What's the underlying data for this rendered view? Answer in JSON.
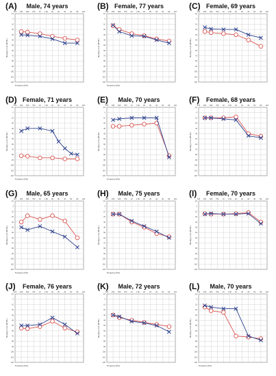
{
  "colors": {
    "right_ear": "#d9534f",
    "left_ear": "#2b3f8c",
    "grid": "#c8c8c8",
    "frame": "#555555"
  },
  "chart_data": [
    {
      "letter": "(A)",
      "title": "Male, 74 years",
      "type": "line",
      "xlabel": "Frequency (Hz)",
      "ylabel": "Hearing Level (dB HL)",
      "ylim": [
        -10,
        120
      ],
      "x_ticks": [
        "125",
        "250",
        "500",
        "750",
        "1K",
        "1.5K",
        "2K",
        "3K",
        "4K",
        "6K",
        "8K",
        "12K"
      ],
      "series": [
        {
          "marker": "circle",
          "values": [
            {
              "x": "250",
              "y": 24
            },
            {
              "x": "500",
              "y": 25
            },
            {
              "x": "1K",
              "y": 28
            },
            {
              "x": "2K",
              "y": 33
            },
            {
              "x": "4K",
              "y": 37
            },
            {
              "x": "8K",
              "y": 40
            }
          ]
        },
        {
          "marker": "cross",
          "values": [
            {
              "x": "250",
              "y": 30
            },
            {
              "x": "500",
              "y": 31
            },
            {
              "x": "1K",
              "y": 33
            },
            {
              "x": "2K",
              "y": 38
            },
            {
              "x": "4K",
              "y": 46
            },
            {
              "x": "8K",
              "y": 46
            }
          ]
        }
      ]
    },
    {
      "letter": "(B)",
      "title": "Female, 77 years",
      "type": "line",
      "xlabel": "Frequency (Hz)",
      "ylabel": "Hearing Level (dB HL)",
      "ylim": [
        -10,
        120
      ],
      "x_ticks": [
        "125",
        "250",
        "500",
        "750",
        "1K",
        "1.5K",
        "2K",
        "3K",
        "4K",
        "6K",
        "8K",
        "12K"
      ],
      "series": [
        {
          "marker": "circle",
          "values": [
            {
              "x": "250",
              "y": 13
            },
            {
              "x": "500",
              "y": 20
            },
            {
              "x": "1K",
              "y": 28
            },
            {
              "x": "2K",
              "y": 32
            },
            {
              "x": "4K",
              "y": 38
            },
            {
              "x": "8K",
              "y": 42
            }
          ]
        },
        {
          "marker": "cross",
          "values": [
            {
              "x": "250",
              "y": 12
            },
            {
              "x": "500",
              "y": 24
            },
            {
              "x": "1K",
              "y": 32
            },
            {
              "x": "2K",
              "y": 33
            },
            {
              "x": "4K",
              "y": 40
            },
            {
              "x": "8K",
              "y": 46
            }
          ]
        }
      ]
    },
    {
      "letter": "(C)",
      "title": "Female, 69 years",
      "type": "line",
      "xlabel": "",
      "ylabel": "Hearing Level (dB HL)",
      "ylim": [
        -10,
        120
      ],
      "x_ticks": [
        "125",
        "250",
        "500",
        "750",
        "1K",
        "1.5K",
        "2K",
        "3K",
        "4K",
        "6K",
        "8K",
        "12K"
      ],
      "series": [
        {
          "marker": "circle",
          "values": [
            {
              "x": "250",
              "y": 24
            },
            {
              "x": "500",
              "y": 26
            },
            {
              "x": "1K",
              "y": 28
            },
            {
              "x": "2K",
              "y": 30
            },
            {
              "x": "4K",
              "y": 40
            },
            {
              "x": "8K",
              "y": 52
            }
          ]
        },
        {
          "marker": "cross",
          "values": [
            {
              "x": "250",
              "y": 16
            },
            {
              "x": "500",
              "y": 19
            },
            {
              "x": "1K",
              "y": 20
            },
            {
              "x": "2K",
              "y": 20
            },
            {
              "x": "4K",
              "y": 30
            },
            {
              "x": "8K",
              "y": 36
            }
          ]
        }
      ]
    },
    {
      "letter": "(D)",
      "title": "Female, 71 years",
      "type": "line",
      "xlabel": "Frequency (Hz)",
      "ylabel": "Hearing Level (dB HL)",
      "ylim": [
        -10,
        120
      ],
      "x_ticks": [
        "125",
        "250",
        "500",
        "750",
        "1K",
        "1.5K",
        "2K",
        "3K",
        "4K",
        "6K",
        "8K",
        "12K"
      ],
      "series": [
        {
          "marker": "circle",
          "values": [
            {
              "x": "250",
              "y": 82
            },
            {
              "x": "500",
              "y": 83
            },
            {
              "x": "1K",
              "y": 86
            },
            {
              "x": "2K",
              "y": 86
            },
            {
              "x": "4K",
              "y": 88
            },
            {
              "x": "8K",
              "y": 88
            }
          ]
        },
        {
          "marker": "cross",
          "values": [
            {
              "x": "250",
              "y": 35
            },
            {
              "x": "500",
              "y": 30
            },
            {
              "x": "1K",
              "y": 30
            },
            {
              "x": "2K",
              "y": 35
            },
            {
              "x": "3K",
              "y": 55
            },
            {
              "x": "4K",
              "y": 68
            },
            {
              "x": "6K",
              "y": 78
            },
            {
              "x": "8K",
              "y": 80
            }
          ]
        }
      ]
    },
    {
      "letter": "(E)",
      "title": "Male, 70 years",
      "type": "line",
      "xlabel": "Frequency (Hz)",
      "ylabel": "Hearing Level (dB HL)",
      "ylim": [
        -10,
        120
      ],
      "x_ticks": [
        "125",
        "250",
        "500",
        "750",
        "1K",
        "1.5K",
        "2K",
        "3K",
        "4K",
        "6K",
        "8K",
        "12K"
      ],
      "series": [
        {
          "marker": "circle",
          "values": [
            {
              "x": "250",
              "y": 26
            },
            {
              "x": "500",
              "y": 26
            },
            {
              "x": "1K",
              "y": 24
            },
            {
              "x": "2K",
              "y": 22
            },
            {
              "x": "4K",
              "y": 20
            },
            {
              "x": "8K",
              "y": 82
            }
          ]
        },
        {
          "marker": "cross",
          "values": [
            {
              "x": "250",
              "y": 14
            },
            {
              "x": "500",
              "y": 12
            },
            {
              "x": "1K",
              "y": 10
            },
            {
              "x": "2K",
              "y": 10
            },
            {
              "x": "4K",
              "y": 10
            },
            {
              "x": "8K",
              "y": 85
            }
          ]
        }
      ]
    },
    {
      "letter": "(F)",
      "title": "Female, 68 years",
      "type": "line",
      "xlabel": "",
      "ylabel": "Hearing Level (dB HL)",
      "ylim": [
        -10,
        120
      ],
      "x_ticks": [
        "125",
        "250",
        "500",
        "750",
        "1K",
        "1.5K",
        "2K",
        "3K",
        "4K",
        "6K",
        "8K",
        "12K"
      ],
      "series": [
        {
          "marker": "circle",
          "values": [
            {
              "x": "250",
              "y": 10
            },
            {
              "x": "500",
              "y": 10
            },
            {
              "x": "1K",
              "y": 10
            },
            {
              "x": "2K",
              "y": 8
            },
            {
              "x": "4K",
              "y": 40
            },
            {
              "x": "8K",
              "y": 45
            }
          ]
        },
        {
          "marker": "cross",
          "values": [
            {
              "x": "250",
              "y": 10
            },
            {
              "x": "500",
              "y": 10
            },
            {
              "x": "1K",
              "y": 12
            },
            {
              "x": "2K",
              "y": 14
            },
            {
              "x": "4K",
              "y": 44
            },
            {
              "x": "8K",
              "y": 48
            }
          ]
        }
      ]
    },
    {
      "letter": "(G)",
      "title": "Male, 65 years",
      "type": "line",
      "xlabel": "Frequency (Hz)",
      "ylabel": "Hearing Level (dB HL)",
      "ylim": [
        -10,
        120
      ],
      "x_ticks": [
        "125",
        "250",
        "500",
        "750",
        "1K",
        "1.5K",
        "2K",
        "3K",
        "4K",
        "6K",
        "8K",
        "12K"
      ],
      "series": [
        {
          "marker": "circle",
          "values": [
            {
              "x": "250",
              "y": 30
            },
            {
              "x": "500",
              "y": 18
            },
            {
              "x": "1K",
              "y": 25
            },
            {
              "x": "2K",
              "y": 18
            },
            {
              "x": "4K",
              "y": 28
            },
            {
              "x": "8K",
              "y": 60
            }
          ]
        },
        {
          "marker": "cross",
          "values": [
            {
              "x": "250",
              "y": 40
            },
            {
              "x": "500",
              "y": 45
            },
            {
              "x": "1K",
              "y": 38
            },
            {
              "x": "2K",
              "y": 48
            },
            {
              "x": "4K",
              "y": 58
            },
            {
              "x": "8K",
              "y": 78
            }
          ]
        }
      ]
    },
    {
      "letter": "(H)",
      "title": "Male, 75 years",
      "type": "line",
      "xlabel": "Frequency (Hz)",
      "ylabel": "Hearing Level (dB HL)",
      "ylim": [
        -10,
        120
      ],
      "x_ticks": [
        "125",
        "250",
        "500",
        "750",
        "1K",
        "1.5K",
        "2K",
        "3K",
        "4K",
        "6K",
        "8K",
        "12K"
      ],
      "series": [
        {
          "marker": "circle",
          "values": [
            {
              "x": "250",
              "y": 15
            },
            {
              "x": "500",
              "y": 15
            },
            {
              "x": "1K",
              "y": 30
            },
            {
              "x": "2K",
              "y": 40
            },
            {
              "x": "4K",
              "y": 52
            },
            {
              "x": "8K",
              "y": 58
            }
          ]
        },
        {
          "marker": "cross",
          "values": [
            {
              "x": "250",
              "y": 15
            },
            {
              "x": "500",
              "y": 15
            },
            {
              "x": "1K",
              "y": 28
            },
            {
              "x": "2K",
              "y": 38
            },
            {
              "x": "4K",
              "y": 48
            },
            {
              "x": "8K",
              "y": 60
            }
          ]
        }
      ]
    },
    {
      "letter": "(I)",
      "title": "Female, 70 years",
      "type": "line",
      "xlabel": "",
      "ylabel": "Hearing Level (dB HL)",
      "ylim": [
        -10,
        120
      ],
      "x_ticks": [
        "125",
        "250",
        "500",
        "750",
        "1K",
        "1.5K",
        "2K",
        "3K",
        "4K",
        "6K",
        "8K",
        "12K"
      ],
      "series": [
        {
          "marker": "circle",
          "values": [
            {
              "x": "250",
              "y": 14
            },
            {
              "x": "500",
              "y": 15
            },
            {
              "x": "1K",
              "y": 15
            },
            {
              "x": "2K",
              "y": 14
            },
            {
              "x": "4K",
              "y": 12
            },
            {
              "x": "8K",
              "y": 30
            }
          ]
        },
        {
          "marker": "cross",
          "values": [
            {
              "x": "250",
              "y": 15
            },
            {
              "x": "500",
              "y": 14
            },
            {
              "x": "1K",
              "y": 15
            },
            {
              "x": "2K",
              "y": 15
            },
            {
              "x": "4K",
              "y": 14
            },
            {
              "x": "8K",
              "y": 33
            }
          ]
        }
      ]
    },
    {
      "letter": "(J)",
      "title": "Female, 76 years",
      "type": "line",
      "xlabel": "Frequency (Hz)",
      "ylabel": "Hearing Level (dB HL)",
      "ylim": [
        -10,
        120
      ],
      "x_ticks": [
        "125",
        "250",
        "500",
        "750",
        "1K",
        "1.5K",
        "2K",
        "3K",
        "4K",
        "6K",
        "8K",
        "12K"
      ],
      "series": [
        {
          "marker": "circle",
          "values": [
            {
              "x": "250",
              "y": 55
            },
            {
              "x": "500",
              "y": 56
            },
            {
              "x": "1K",
              "y": 52
            },
            {
              "x": "2K",
              "y": 42
            },
            {
              "x": "4K",
              "y": 55
            },
            {
              "x": "8K",
              "y": 62
            }
          ]
        },
        {
          "marker": "cross",
          "values": [
            {
              "x": "250",
              "y": 50
            },
            {
              "x": "500",
              "y": 50
            },
            {
              "x": "1K",
              "y": 48
            },
            {
              "x": "2K",
              "y": 35
            },
            {
              "x": "4K",
              "y": 48
            },
            {
              "x": "8K",
              "y": 65
            }
          ]
        }
      ]
    },
    {
      "letter": "(K)",
      "title": "Male, 72 years",
      "type": "line",
      "xlabel": "Frequency (Hz)",
      "ylabel": "Hearing Level (dB HL)",
      "ylim": [
        -10,
        120
      ],
      "x_ticks": [
        "125",
        "250",
        "500",
        "750",
        "1K",
        "1.5K",
        "2K",
        "3K",
        "4K",
        "6K",
        "8K",
        "12K"
      ],
      "series": [
        {
          "marker": "circle",
          "values": [
            {
              "x": "250",
              "y": 30
            },
            {
              "x": "500",
              "y": 35
            },
            {
              "x": "1K",
              "y": 40
            },
            {
              "x": "2K",
              "y": 44
            },
            {
              "x": "4K",
              "y": 48
            },
            {
              "x": "8K",
              "y": 52
            }
          ]
        },
        {
          "marker": "cross",
          "values": [
            {
              "x": "250",
              "y": 30
            },
            {
              "x": "500",
              "y": 33
            },
            {
              "x": "1K",
              "y": 42
            },
            {
              "x": "2K",
              "y": 45
            },
            {
              "x": "4K",
              "y": 50
            },
            {
              "x": "8K",
              "y": 62
            }
          ]
        }
      ]
    },
    {
      "letter": "(L)",
      "title": "Male, 70 years",
      "type": "line",
      "xlabel": "Frequency (Hz)",
      "ylabel": "Hearing Level (dB HL)",
      "ylim": [
        -10,
        120
      ],
      "x_ticks": [
        "125",
        "250",
        "500",
        "750",
        "1K",
        "1.5K",
        "2K",
        "3K",
        "4K",
        "6K",
        "8K",
        "12K"
      ],
      "series": [
        {
          "marker": "circle",
          "values": [
            {
              "x": "250",
              "y": 15
            },
            {
              "x": "500",
              "y": 22
            },
            {
              "x": "1K",
              "y": 25
            },
            {
              "x": "2K",
              "y": 70
            },
            {
              "x": "4K",
              "y": 72
            },
            {
              "x": "8K",
              "y": 75
            }
          ]
        },
        {
          "marker": "cross",
          "values": [
            {
              "x": "250",
              "y": 12
            },
            {
              "x": "500",
              "y": 15
            },
            {
              "x": "1K",
              "y": 18
            },
            {
              "x": "2K",
              "y": 18
            },
            {
              "x": "4K",
              "y": 70
            },
            {
              "x": "8K",
              "y": 78
            }
          ]
        }
      ]
    }
  ]
}
